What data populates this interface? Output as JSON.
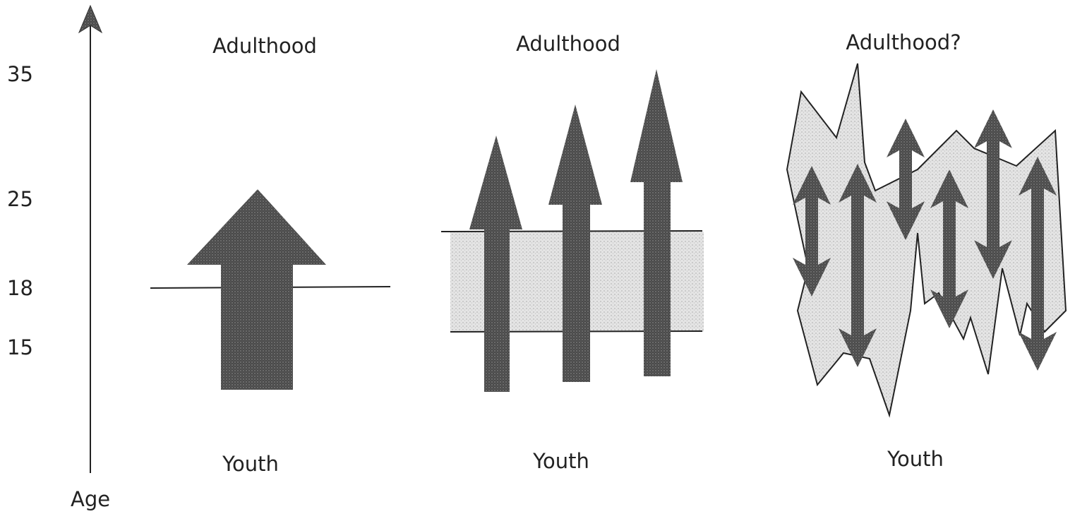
{
  "axis": {
    "label": "Age",
    "ticks": [
      35,
      25,
      18,
      15
    ]
  },
  "panels": [
    {
      "title": "Adulthood",
      "footer": "Youth"
    },
    {
      "title": "Adulthood",
      "footer": "Youth"
    },
    {
      "title": "Adulthood?",
      "footer": "Youth"
    }
  ]
}
